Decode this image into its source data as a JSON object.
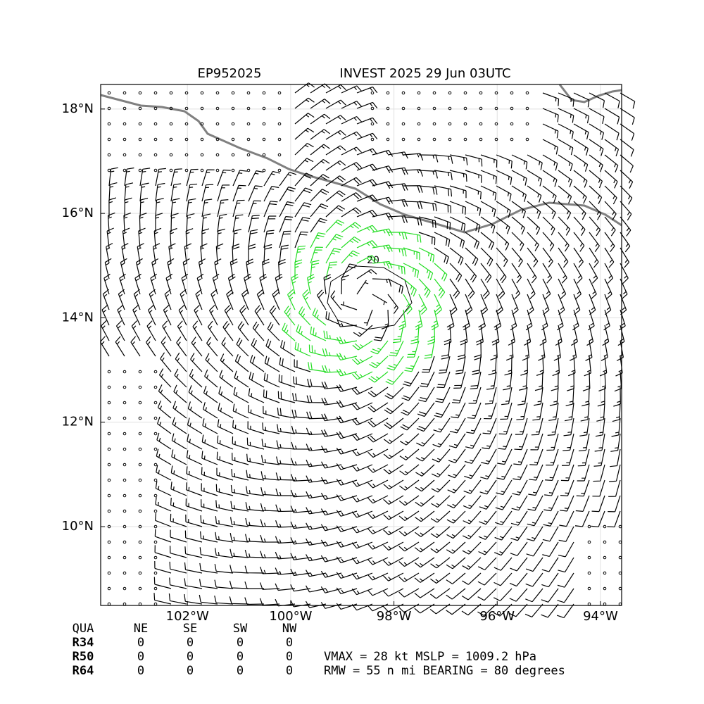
{
  "header": {
    "storm_id": "EP952025",
    "title": "INVEST 2025 29 Jun 03UTC"
  },
  "map": {
    "xlim": [
      -103.68,
      -93.59
    ],
    "ylim": [
      8.49,
      18.47
    ],
    "xticks": [
      {
        "value": -102,
        "label": "102°W"
      },
      {
        "value": -100,
        "label": "100°W"
      },
      {
        "value": -98,
        "label": "98°W"
      },
      {
        "value": -96,
        "label": "96°W"
      },
      {
        "value": -94,
        "label": "94°W"
      }
    ],
    "yticks": [
      {
        "value": 10,
        "label": "10°N"
      },
      {
        "value": 12,
        "label": "12°N"
      },
      {
        "value": 14,
        "label": "14°N"
      },
      {
        "value": 16,
        "label": "16°N"
      },
      {
        "value": 18,
        "label": "18°N"
      }
    ],
    "grid": true,
    "storm_center": {
      "lon": -98.6,
      "lat": 14.3
    },
    "contour_label": 20,
    "barb_color": "#000000",
    "strong_barb_color": "#22dd22",
    "coast_color": "#808080"
  },
  "table": {
    "header": [
      "QUA",
      "NE",
      "SE",
      "SW",
      "NW"
    ],
    "rows": [
      [
        "R34",
        0,
        0,
        0,
        0
      ],
      [
        "R50",
        0,
        0,
        0,
        0
      ],
      [
        "R64",
        0,
        0,
        0,
        0
      ]
    ]
  },
  "summary": {
    "vmax_label": "VMAX =",
    "vmax": 28,
    "vmax_unit": "kt",
    "mslp_label": "MSLP =",
    "mslp": 1009.2,
    "mslp_unit": "hPa",
    "rmw_label": "RMW =",
    "rmw": 55,
    "rmw_unit": "n mi",
    "bearing_label": "BEARING =",
    "bearing": 80,
    "bearing_unit": "degrees"
  }
}
